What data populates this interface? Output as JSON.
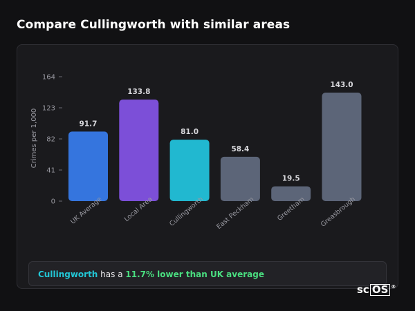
{
  "page_title": "Compare Cullingworth with similar areas",
  "summary": {
    "name": "Cullingworth",
    "middle": " has a ",
    "stat": "11.7% lower than UK average"
  },
  "logo": {
    "prefix": "sc",
    "boxed": "OS",
    "reg": "®"
  },
  "chart_data": {
    "type": "bar",
    "title": "",
    "xlabel": "",
    "ylabel": "Crimes per 1,000",
    "ylim": [
      0,
      164
    ],
    "yticks": [
      "0",
      "41",
      "82",
      "123",
      "164"
    ],
    "grid": false,
    "categories": [
      "UK Average",
      "Local Area",
      "Cullingworth",
      "East Peckham",
      "Greetham",
      "Greasbrough"
    ],
    "values": [
      91.7,
      133.8,
      81.0,
      58.4,
      19.5,
      143.0
    ],
    "value_labels": [
      "91.7",
      "133.8",
      "81.0",
      "58.4",
      "19.5",
      "143.0"
    ],
    "colors": [
      "#3575de",
      "#7c4fd8",
      "#21b8d0",
      "#5c6578",
      "#5c6578",
      "#5c6578"
    ]
  }
}
